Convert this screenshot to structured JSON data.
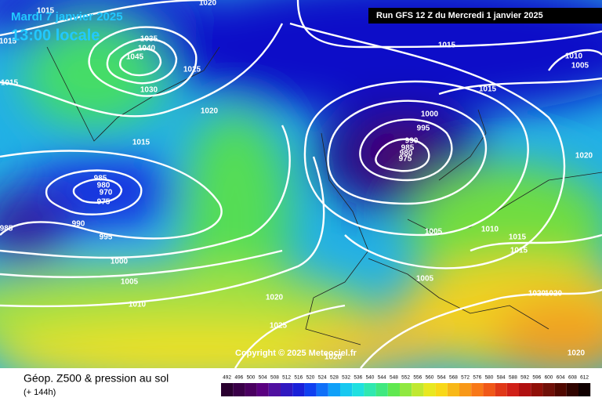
{
  "header": {
    "date": "Mardi 7 janvier 2025",
    "time": "13:00 locale",
    "run": "Run GFS 12 Z du Mercredi 1 janvier 2025"
  },
  "copyright": "Copyright © 2025 Meteociel.fr",
  "footer": {
    "title": "Géop. Z500 & pression au sol",
    "lead": "(+ 144h)"
  },
  "scale": [
    492,
    496,
    500,
    504,
    508,
    512,
    516,
    520,
    524,
    528,
    532,
    536,
    540,
    544,
    548,
    552,
    556,
    560,
    564,
    568,
    572,
    576,
    580,
    584,
    588,
    592,
    596,
    600,
    604,
    608,
    612
  ],
  "isobar_labels": [
    "1015",
    "1015",
    "1035",
    "1040",
    "1045",
    "1025",
    "1030",
    "1020",
    "1015",
    "985",
    "980",
    "970",
    "975",
    "990",
    "995",
    "1000",
    "1005",
    "1010",
    "1020",
    "1025",
    "1015",
    "1010",
    "1005",
    "1015",
    "1000",
    "995",
    "990",
    "985",
    "980",
    "975",
    "1020",
    "1005",
    "1010",
    "1015",
    "1015",
    "1005",
    "1020",
    "1020",
    "1020",
    "985",
    "1020",
    "1015",
    "1020"
  ]
}
